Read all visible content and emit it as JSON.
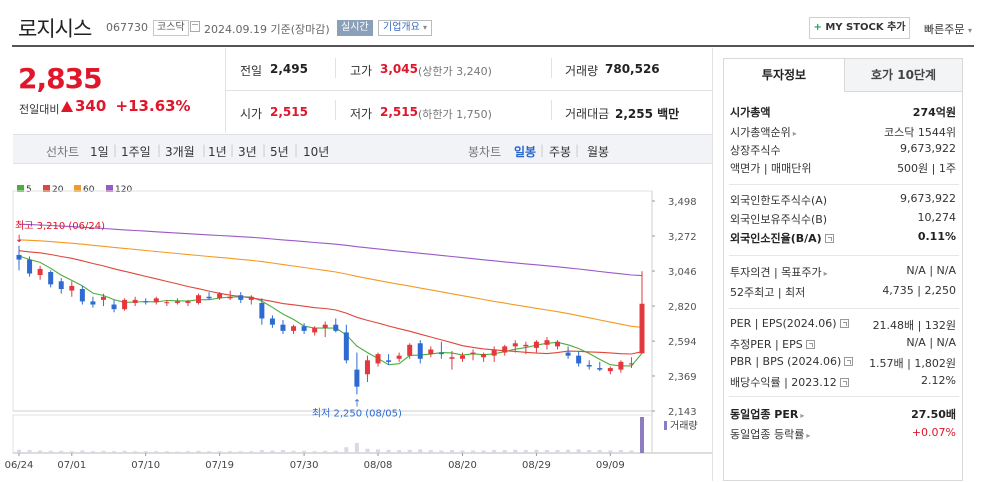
{
  "header": {
    "name": "로지시스",
    "code": "067730",
    "market": "코스닥",
    "date": "2024.09.19",
    "basis": "기준(장마감)",
    "realtime": "실시간",
    "company_overview": "기업개요",
    "mystock_button": "MY STOCK 추가",
    "mystock_plus": "+",
    "quick_order": "빠른주문"
  },
  "price": {
    "current": "2,835",
    "change_label": "전일대비",
    "change_amount": "340",
    "change_pct": "+13.63%"
  },
  "summary": {
    "prev_close_label": "전일",
    "prev_close": "2,495",
    "open_label": "시가",
    "open": "2,515",
    "high_label": "고가",
    "high": "3,045",
    "upper_limit": "(상한가 3,240)",
    "low_label": "저가",
    "low": "2,515",
    "lower_limit": "(하한가 1,750)",
    "volume_label": "거래량",
    "volume": "780,526",
    "amount_label": "거래대금",
    "amount": "2,255 백만"
  },
  "period_bar": {
    "line_label": "선차트",
    "periods": [
      "1일",
      "1주일",
      "3개월",
      "1년",
      "3년",
      "5년",
      "10년"
    ],
    "candle_label": "봉차트",
    "candle_periods": [
      "일봉",
      "주봉",
      "월봉"
    ]
  },
  "chart_data": {
    "type": "candlestick",
    "legend": [
      "5",
      "20",
      "60",
      "120"
    ],
    "legend_colors": [
      "#4cae3c",
      "#e0463a",
      "#f39a24",
      "#9b59c6"
    ],
    "y_ticks": [
      "3,498",
      "3,272",
      "3,046",
      "2,820",
      "2,594",
      "2,369",
      "2,143"
    ],
    "ylim": [
      2143,
      3498
    ],
    "x_ticks": [
      "06/24",
      "07/01",
      "07/10",
      "07/19",
      "07/30",
      "08/08",
      "08/20",
      "08/29",
      "09/09"
    ],
    "high_annotation": "최고 3,210 (06/24)",
    "low_annotation": "최저 2,250 (08/05)",
    "volume_label": "거래량",
    "candles": [
      [
        3150,
        3210,
        3050,
        3120
      ],
      [
        3120,
        3140,
        3010,
        3030
      ],
      [
        3020,
        3080,
        2990,
        3060
      ],
      [
        3040,
        3050,
        2940,
        2960
      ],
      [
        2980,
        3000,
        2900,
        2930
      ],
      [
        2920,
        2980,
        2880,
        2950
      ],
      [
        2930,
        2950,
        2830,
        2850
      ],
      [
        2850,
        2880,
        2810,
        2830
      ],
      [
        2860,
        2900,
        2820,
        2880
      ],
      [
        2830,
        2860,
        2780,
        2800
      ],
      [
        2800,
        2870,
        2790,
        2860
      ],
      [
        2840,
        2880,
        2820,
        2860
      ],
      [
        2850,
        2870,
        2830,
        2845
      ],
      [
        2845,
        2880,
        2830,
        2870
      ],
      [
        2840,
        2860,
        2820,
        2845
      ],
      [
        2840,
        2870,
        2830,
        2850
      ],
      [
        2840,
        2860,
        2820,
        2850
      ],
      [
        2840,
        2900,
        2830,
        2890
      ],
      [
        2880,
        2910,
        2860,
        2870
      ],
      [
        2870,
        2910,
        2860,
        2900
      ],
      [
        2870,
        2920,
        2860,
        2880
      ],
      [
        2890,
        2910,
        2840,
        2860
      ],
      [
        2860,
        2890,
        2830,
        2880
      ],
      [
        2840,
        2870,
        2700,
        2740
      ],
      [
        2740,
        2760,
        2680,
        2700
      ],
      [
        2700,
        2730,
        2640,
        2660
      ],
      [
        2660,
        2700,
        2640,
        2690
      ],
      [
        2690,
        2710,
        2640,
        2660
      ],
      [
        2650,
        2690,
        2630,
        2680
      ],
      [
        2680,
        2720,
        2620,
        2700
      ],
      [
        2700,
        2740,
        2650,
        2660
      ],
      [
        2650,
        2700,
        2450,
        2470
      ],
      [
        2410,
        2520,
        2250,
        2300
      ],
      [
        2380,
        2500,
        2330,
        2470
      ],
      [
        2450,
        2520,
        2430,
        2510
      ],
      [
        2470,
        2510,
        2440,
        2460
      ],
      [
        2480,
        2520,
        2460,
        2500
      ],
      [
        2500,
        2580,
        2480,
        2570
      ],
      [
        2580,
        2600,
        2450,
        2480
      ],
      [
        2510,
        2560,
        2490,
        2540
      ],
      [
        2520,
        2590,
        2480,
        2510
      ],
      [
        2480,
        2530,
        2410,
        2490
      ],
      [
        2480,
        2520,
        2460,
        2500
      ],
      [
        2510,
        2540,
        2470,
        2520
      ],
      [
        2490,
        2520,
        2460,
        2510
      ],
      [
        2500,
        2560,
        2460,
        2540
      ],
      [
        2520,
        2570,
        2500,
        2560
      ],
      [
        2560,
        2600,
        2520,
        2580
      ],
      [
        2560,
        2590,
        2510,
        2570
      ],
      [
        2550,
        2600,
        2520,
        2590
      ],
      [
        2570,
        2620,
        2540,
        2600
      ],
      [
        2560,
        2600,
        2540,
        2590
      ],
      [
        2520,
        2560,
        2480,
        2500
      ],
      [
        2500,
        2530,
        2430,
        2450
      ],
      [
        2440,
        2470,
        2410,
        2430
      ],
      [
        2420,
        2460,
        2400,
        2410
      ],
      [
        2400,
        2430,
        2380,
        2420
      ],
      [
        2410,
        2470,
        2390,
        2460
      ],
      [
        2450,
        2490,
        2420,
        2450
      ],
      [
        2515,
        3045,
        2515,
        2835
      ]
    ],
    "volumes": [
      9,
      8,
      7,
      6,
      6,
      5,
      7,
      5,
      6,
      5,
      6,
      5,
      5,
      5,
      5,
      4,
      5,
      6,
      5,
      5,
      5,
      5,
      5,
      8,
      7,
      8,
      6,
      6,
      5,
      6,
      6,
      16,
      28,
      12,
      10,
      9,
      8,
      9,
      10,
      8,
      7,
      8,
      7,
      7,
      7,
      8,
      8,
      9,
      8,
      9,
      8,
      8,
      9,
      10,
      8,
      8,
      7,
      8,
      7,
      100
    ]
  },
  "sidebar": {
    "tab_invest": "투자정보",
    "tab_orderbook": "호가 10단계",
    "rows": [
      {
        "k": "시가총액",
        "v": "274억원",
        "bold": true
      },
      {
        "k": "시가총액순위",
        "v": "코스닥 1544위",
        "arrow": true
      },
      {
        "k": "상장주식수",
        "v": "9,673,922"
      },
      {
        "k": "액면가 | 매매단위",
        "v": "500원 | 1주"
      },
      {
        "k": "외국인한도주식수(A)",
        "v": "9,673,922"
      },
      {
        "k": "외국인보유주식수(B)",
        "v": "10,274"
      },
      {
        "k": "외국인소진율(B/A)",
        "v": "0.11%",
        "bold": true,
        "q": true
      },
      {
        "k": "투자의견 | 목표주가",
        "v": "N/A | N/A",
        "arrow": true
      },
      {
        "k": "52주최고 | 최저",
        "v": "4,735 | 2,250"
      },
      {
        "k": "PER | EPS(2024.06)",
        "v": "21.48배 | 132원",
        "q": true
      },
      {
        "k": "추정PER | EPS",
        "v": "N/A | N/A",
        "q": true
      },
      {
        "k": "PBR | BPS (2024.06)",
        "v": "1.57배 | 1,802원",
        "q": true
      },
      {
        "k": "배당수익률 | 2023.12",
        "v": "2.12%",
        "q": true
      },
      {
        "k": "동일업종 PER",
        "v": "27.50배",
        "bold": true,
        "arrow": true
      },
      {
        "k": "동일업종 등락률",
        "v": "+0.07%",
        "red": true,
        "arrow": true
      }
    ]
  }
}
